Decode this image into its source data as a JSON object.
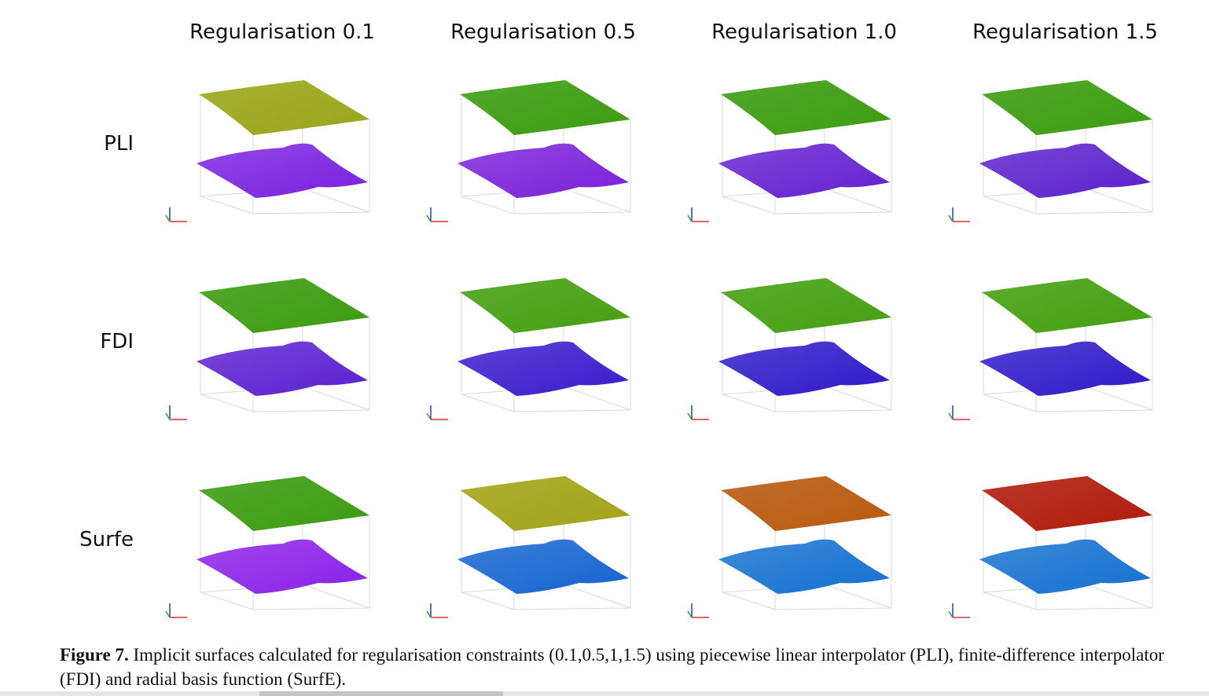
{
  "figure": {
    "columns": [
      "Regularisation 0.1",
      "Regularisation 0.5",
      "Regularisation 1.0",
      "Regularisation 1.5"
    ],
    "rows": [
      {
        "label": "PLI",
        "panels": [
          {
            "top": "#9aa61a",
            "bottom": "#7a20e0"
          },
          {
            "top": "#3c9c10",
            "bottom": "#7a20d8"
          },
          {
            "top": "#3c9c10",
            "bottom": "#6420d0"
          },
          {
            "top": "#3c9c10",
            "bottom": "#5a20cc"
          }
        ]
      },
      {
        "label": "FDI",
        "panels": [
          {
            "top": "#3c9c10",
            "bottom": "#5a1fd0"
          },
          {
            "top": "#46a012",
            "bottom": "#3a1acc"
          },
          {
            "top": "#46a012",
            "bottom": "#2f18c8"
          },
          {
            "top": "#46a012",
            "bottom": "#2f18c8"
          }
        ]
      },
      {
        "label": "Surfe",
        "panels": [
          {
            "top": "#3c9c10",
            "bottom": "#8a20e8"
          },
          {
            "top": "#a2a418",
            "bottom": "#1463d0"
          },
          {
            "top": "#b85a10",
            "bottom": "#1470d0"
          },
          {
            "top": "#b01c0c",
            "bottom": "#1470d0"
          }
        ]
      }
    ]
  },
  "caption": {
    "label": "Figure 7.",
    "text": " Implicit surfaces calculated for regularisation constraints (0.1,0.5,1,1.5) using piecewise linear interpolator (PLI), finite-difference interpolator (FDI) and radial basis function (SurfE)."
  }
}
